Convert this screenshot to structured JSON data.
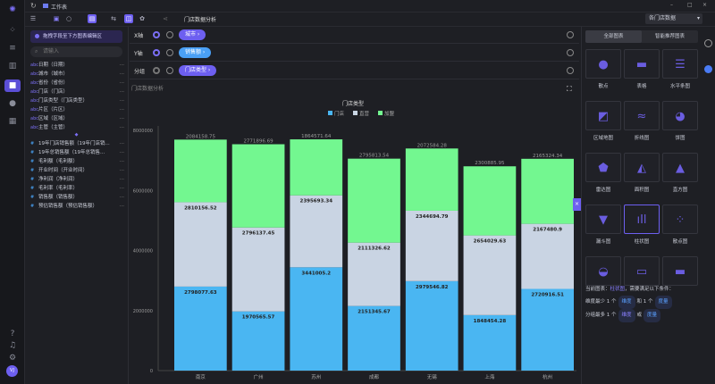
{
  "app": {
    "breadcrumb": "工作表",
    "chart_name": "门店数据分析",
    "dataset_select": "各门店数据"
  },
  "toolbar_icons": [
    "list-icon",
    "save-icon",
    "refresh-icon",
    "layout-icon",
    "filter-icon",
    "chart-icon",
    "settings-icon",
    "share-icon"
  ],
  "fields": {
    "hint": "拖拽字段至下方图表编辑区",
    "search_placeholder": "请输入",
    "dimensions": [
      "日期（日期）",
      "城市（城市）",
      "省份（省份）",
      "门店（门店）",
      "门店类型（门店类型）",
      "片区（片区）",
      "区域（区域）",
      "主管（主管）"
    ],
    "measures": [
      "19年门店销售额（19年门店销...",
      "19年总销售额（19年总销售...",
      "毛利额（毛利额）",
      "开业时间（开业时间）",
      "净利润（净利润）",
      "毛利率（毛利率）",
      "销售额（销售额）",
      "预估销售额（预估销售额）"
    ]
  },
  "axes": {
    "x_label": "X轴",
    "x_pill": "城市 ›",
    "y_label": "Y轴",
    "y_pill": "销售额 ›",
    "group_label": "分组",
    "group_pill": "门店类型 ›"
  },
  "card": {
    "title": "门店数据分析"
  },
  "chart_data": {
    "type": "bar",
    "stacked": true,
    "title": "门店类型",
    "legend_position": "top",
    "categories": [
      "南京",
      "广州",
      "苏州",
      "成都",
      "无锡",
      "上海",
      "杭州"
    ],
    "series": [
      {
        "name": "门店",
        "color": "#4ab6f2",
        "values": [
          2798077.63,
          1970565.57,
          3441005.2,
          2151345.67,
          2979546.82,
          1848454.28,
          2720916.51
        ]
      },
      {
        "name": "直营",
        "color": "#c9d4e3",
        "values": [
          2810156.52,
          2796137.45,
          2395693.34,
          2111326.62,
          2344694.79,
          2654029.63,
          2167480.9
        ]
      },
      {
        "name": "加盟",
        "color": "#73f790",
        "values": [
          2084158.75,
          2771896.69,
          1864571.64,
          2795813.54,
          2072584.28,
          2300885.95,
          2165324.34
        ]
      }
    ],
    "yticks": [
      "0",
      "2000000",
      "4000000",
      "6000000",
      "8000000"
    ],
    "ylim": [
      0,
      8000000
    ],
    "grid": false
  },
  "right": {
    "tabs": [
      "全部图表",
      "智能推荐图表"
    ],
    "charts": [
      "散点",
      "表格",
      "水平条图",
      "区域地图",
      "折线图",
      "饼图",
      "雷达图",
      "面积图",
      "直方图",
      "漏斗图",
      "柱状图",
      "散点图",
      "",
      "",
      ""
    ],
    "selected": "柱状图",
    "desc": {
      "l1a": "当前图表：",
      "l1b": "柱状图",
      "l1c": "，需要满足以下条件：",
      "l2a": "维度最少 1 个",
      "l2b": "维度",
      "l2c": "和 1 个",
      "l2d": "度量",
      "l3a": "分组最多 1 个",
      "l3b": "维度",
      "l3c": "或",
      "l3d": "度量"
    }
  },
  "user": {
    "avatar": "VJ"
  }
}
